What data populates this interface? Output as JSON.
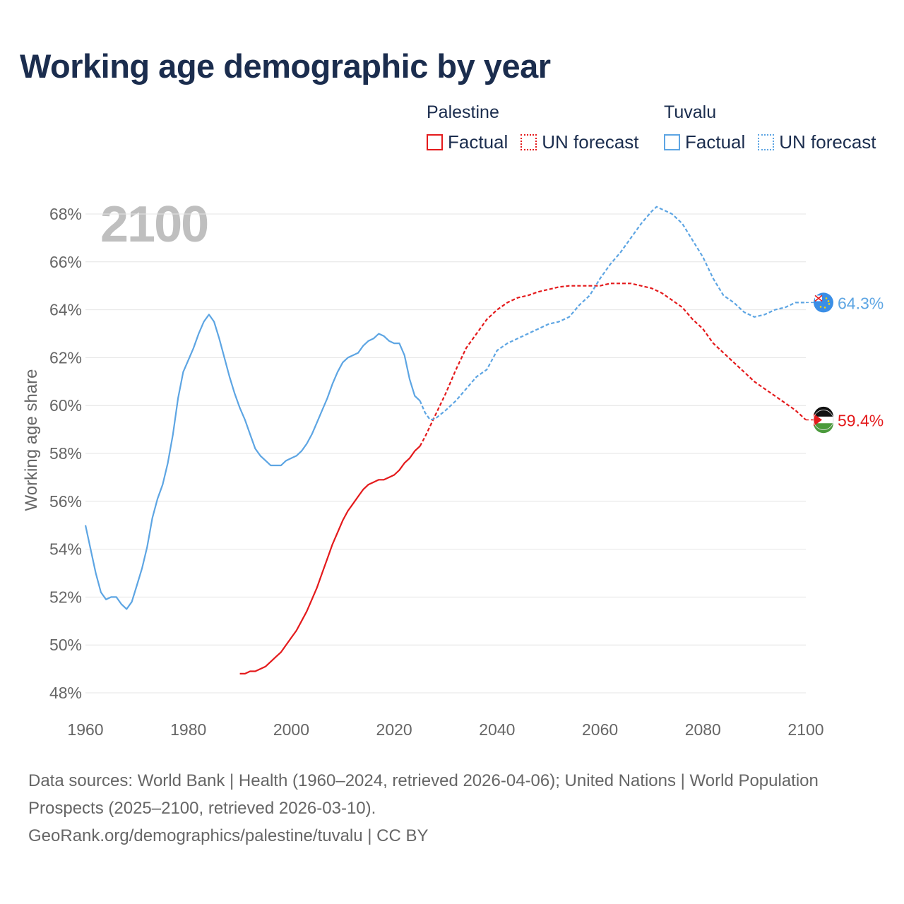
{
  "title": "Working age demographic by year",
  "legend": {
    "groups": [
      {
        "name": "Palestine",
        "color": "#e41a1c",
        "factual": "Factual",
        "forecast": "UN forecast"
      },
      {
        "name": "Tuvalu",
        "color": "#5da5e3",
        "factual": "Factual",
        "forecast": "UN forecast"
      }
    ]
  },
  "chart_data": {
    "type": "line",
    "title": "Working age demographic by year",
    "year_label": "2100",
    "xlabel": "",
    "ylabel": "Working age share",
    "xlim": [
      1960,
      2100
    ],
    "ylim": [
      48,
      68
    ],
    "x_ticks": [
      "1960",
      "1980",
      "2000",
      "2020",
      "2040",
      "2060",
      "2080",
      "2100"
    ],
    "y_ticks": [
      "48%",
      "50%",
      "52%",
      "54%",
      "56%",
      "58%",
      "60%",
      "62%",
      "64%",
      "66%",
      "68%"
    ],
    "series": [
      {
        "name": "Palestine",
        "color": "#e41a1c",
        "end_label": "59.4%",
        "factual": [
          [
            1990,
            48.8
          ],
          [
            1991,
            48.8
          ],
          [
            1992,
            48.9
          ],
          [
            1993,
            48.9
          ],
          [
            1994,
            49.0
          ],
          [
            1995,
            49.1
          ],
          [
            1996,
            49.3
          ],
          [
            1997,
            49.5
          ],
          [
            1998,
            49.7
          ],
          [
            1999,
            50.0
          ],
          [
            2000,
            50.3
          ],
          [
            2001,
            50.6
          ],
          [
            2002,
            51.0
          ],
          [
            2003,
            51.4
          ],
          [
            2004,
            51.9
          ],
          [
            2005,
            52.4
          ],
          [
            2006,
            53.0
          ],
          [
            2007,
            53.6
          ],
          [
            2008,
            54.2
          ],
          [
            2009,
            54.7
          ],
          [
            2010,
            55.2
          ],
          [
            2011,
            55.6
          ],
          [
            2012,
            55.9
          ],
          [
            2013,
            56.2
          ],
          [
            2014,
            56.5
          ],
          [
            2015,
            56.7
          ],
          [
            2016,
            56.8
          ],
          [
            2017,
            56.9
          ],
          [
            2018,
            56.9
          ],
          [
            2019,
            57.0
          ],
          [
            2020,
            57.1
          ],
          [
            2021,
            57.3
          ],
          [
            2022,
            57.6
          ],
          [
            2023,
            57.8
          ],
          [
            2024,
            58.1
          ],
          [
            2025,
            58.3
          ]
        ],
        "forecast": [
          [
            2025,
            58.3
          ],
          [
            2026,
            58.7
          ],
          [
            2028,
            59.6
          ],
          [
            2030,
            60.5
          ],
          [
            2032,
            61.5
          ],
          [
            2034,
            62.4
          ],
          [
            2036,
            63.0
          ],
          [
            2038,
            63.6
          ],
          [
            2040,
            64.0
          ],
          [
            2042,
            64.3
          ],
          [
            2044,
            64.5
          ],
          [
            2046,
            64.6
          ],
          [
            2048,
            64.75
          ],
          [
            2050,
            64.85
          ],
          [
            2052,
            64.95
          ],
          [
            2054,
            65.0
          ],
          [
            2056,
            65.0
          ],
          [
            2058,
            65.0
          ],
          [
            2060,
            65.0
          ],
          [
            2062,
            65.1
          ],
          [
            2064,
            65.1
          ],
          [
            2066,
            65.1
          ],
          [
            2068,
            65.0
          ],
          [
            2070,
            64.9
          ],
          [
            2072,
            64.7
          ],
          [
            2074,
            64.4
          ],
          [
            2076,
            64.1
          ],
          [
            2078,
            63.6
          ],
          [
            2080,
            63.2
          ],
          [
            2082,
            62.6
          ],
          [
            2084,
            62.2
          ],
          [
            2086,
            61.8
          ],
          [
            2088,
            61.4
          ],
          [
            2090,
            61.0
          ],
          [
            2092,
            60.7
          ],
          [
            2094,
            60.4
          ],
          [
            2096,
            60.1
          ],
          [
            2098,
            59.8
          ],
          [
            2100,
            59.4
          ]
        ]
      },
      {
        "name": "Tuvalu",
        "color": "#5da5e3",
        "end_label": "64.3%",
        "factual": [
          [
            1960,
            55.0
          ],
          [
            1961,
            54.0
          ],
          [
            1962,
            53.0
          ],
          [
            1963,
            52.2
          ],
          [
            1964,
            51.9
          ],
          [
            1965,
            52.0
          ],
          [
            1966,
            52.0
          ],
          [
            1967,
            51.7
          ],
          [
            1968,
            51.5
          ],
          [
            1969,
            51.8
          ],
          [
            1970,
            52.5
          ],
          [
            1971,
            53.2
          ],
          [
            1972,
            54.1
          ],
          [
            1973,
            55.3
          ],
          [
            1974,
            56.1
          ],
          [
            1975,
            56.7
          ],
          [
            1976,
            57.6
          ],
          [
            1977,
            58.8
          ],
          [
            1978,
            60.3
          ],
          [
            1979,
            61.4
          ],
          [
            1980,
            61.9
          ],
          [
            1981,
            62.4
          ],
          [
            1982,
            63.0
          ],
          [
            1983,
            63.5
          ],
          [
            1984,
            63.8
          ],
          [
            1985,
            63.5
          ],
          [
            1986,
            62.8
          ],
          [
            1987,
            62.0
          ],
          [
            1988,
            61.2
          ],
          [
            1989,
            60.5
          ],
          [
            1990,
            59.9
          ],
          [
            1991,
            59.4
          ],
          [
            1992,
            58.8
          ],
          [
            1993,
            58.2
          ],
          [
            1994,
            57.9
          ],
          [
            1995,
            57.7
          ],
          [
            1996,
            57.5
          ],
          [
            1997,
            57.5
          ],
          [
            1998,
            57.5
          ],
          [
            1999,
            57.7
          ],
          [
            2000,
            57.8
          ],
          [
            2001,
            57.9
          ],
          [
            2002,
            58.1
          ],
          [
            2003,
            58.4
          ],
          [
            2004,
            58.8
          ],
          [
            2005,
            59.3
          ],
          [
            2006,
            59.8
          ],
          [
            2007,
            60.3
          ],
          [
            2008,
            60.9
          ],
          [
            2009,
            61.4
          ],
          [
            2010,
            61.8
          ],
          [
            2011,
            62.0
          ],
          [
            2012,
            62.1
          ],
          [
            2013,
            62.2
          ],
          [
            2014,
            62.5
          ],
          [
            2015,
            62.7
          ],
          [
            2016,
            62.8
          ],
          [
            2017,
            63.0
          ],
          [
            2018,
            62.9
          ],
          [
            2019,
            62.7
          ],
          [
            2020,
            62.6
          ],
          [
            2021,
            62.6
          ],
          [
            2022,
            62.1
          ],
          [
            2023,
            61.1
          ],
          [
            2024,
            60.4
          ],
          [
            2025,
            60.2
          ]
        ],
        "forecast": [
          [
            2025,
            60.2
          ],
          [
            2026,
            59.7
          ],
          [
            2027,
            59.4
          ],
          [
            2028,
            59.45
          ],
          [
            2030,
            59.8
          ],
          [
            2032,
            60.2
          ],
          [
            2034,
            60.7
          ],
          [
            2036,
            61.2
          ],
          [
            2038,
            61.5
          ],
          [
            2040,
            62.3
          ],
          [
            2042,
            62.6
          ],
          [
            2044,
            62.8
          ],
          [
            2046,
            63.0
          ],
          [
            2048,
            63.2
          ],
          [
            2050,
            63.4
          ],
          [
            2052,
            63.5
          ],
          [
            2054,
            63.7
          ],
          [
            2056,
            64.2
          ],
          [
            2058,
            64.6
          ],
          [
            2060,
            65.3
          ],
          [
            2062,
            65.9
          ],
          [
            2064,
            66.4
          ],
          [
            2066,
            67.0
          ],
          [
            2068,
            67.6
          ],
          [
            2070,
            68.1
          ],
          [
            2071,
            68.3
          ],
          [
            2072,
            68.2
          ],
          [
            2074,
            68.0
          ],
          [
            2076,
            67.6
          ],
          [
            2078,
            66.9
          ],
          [
            2080,
            66.2
          ],
          [
            2082,
            65.3
          ],
          [
            2084,
            64.6
          ],
          [
            2086,
            64.3
          ],
          [
            2088,
            63.9
          ],
          [
            2090,
            63.7
          ],
          [
            2092,
            63.8
          ],
          [
            2094,
            64.0
          ],
          [
            2096,
            64.1
          ],
          [
            2098,
            64.3
          ],
          [
            2100,
            64.3
          ]
        ]
      }
    ]
  },
  "footer": {
    "sources": "Data sources: World Bank | Health (1960–2024, retrieved 2026-04-06); United Nations | World Population Prospects (2025–2100, retrieved 2026-03-10).",
    "attribution": "GeoRank.org/demographics/palestine/tuvalu | CC BY"
  }
}
